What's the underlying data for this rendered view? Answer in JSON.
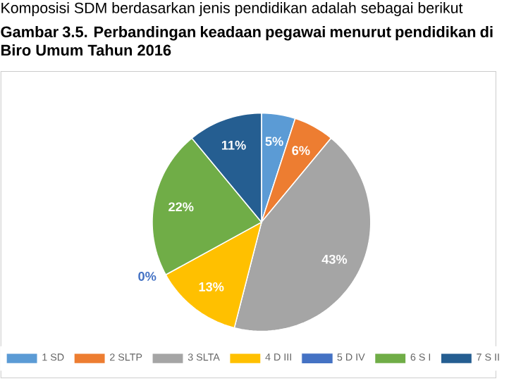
{
  "chart_data": {
    "type": "pie",
    "title": "Gambar 3.5. Perbandingan keadaan pegawai menurut pendidikan di Biro Umum Tahun 2016",
    "annotations": [
      "Komposisi SDM berdasarkan jenis pendidikan adalah sebagai berikut"
    ],
    "categories": [
      "1 SD",
      "2 SLTP",
      "3 SLTA",
      "4 D III",
      "5 D IV",
      "6 S I",
      "7 S II"
    ],
    "values": [
      5,
      6,
      43,
      13,
      0,
      22,
      11
    ],
    "value_labels": [
      "5%",
      "6%",
      "43%",
      "13%",
      "0%",
      "22%",
      "11%"
    ],
    "colors": [
      "#5b9bd5",
      "#ed7d31",
      "#a5a5a5",
      "#ffc000",
      "#4472c4",
      "#70ad47",
      "#255e91"
    ],
    "legend": "bottom"
  }
}
